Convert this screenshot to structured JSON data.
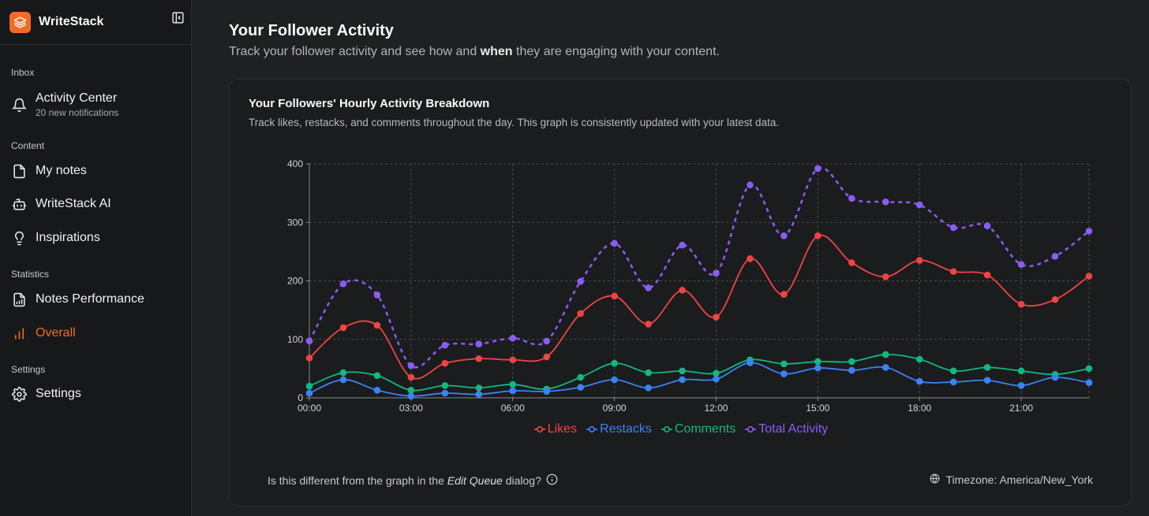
{
  "app": {
    "name": "WriteStack"
  },
  "sidebar": {
    "sections": {
      "inbox": "Inbox",
      "content": "Content",
      "statistics": "Statistics",
      "settings": "Settings"
    },
    "items": {
      "activity_center": {
        "label": "Activity Center",
        "sub": "20 new notifications"
      },
      "my_notes": {
        "label": "My notes"
      },
      "ai": {
        "label": "WriteStack AI"
      },
      "inspirations": {
        "label": "Inspirations"
      },
      "notes_performance": {
        "label": "Notes Performance"
      },
      "overall": {
        "label": "Overall"
      },
      "settings": {
        "label": "Settings"
      }
    }
  },
  "page": {
    "title": "Your Follower Activity",
    "subtitle_pre": "Track your follower activity and see how and ",
    "subtitle_bold": "when",
    "subtitle_post": " they are engaging with your content."
  },
  "card": {
    "title": "Your Followers' Hourly Activity Breakdown",
    "subtitle": "Track likes, restacks, and comments throughout the day. This graph is consistently updated with your latest data.",
    "footer_pre": "Is this different from the graph in the ",
    "footer_em": "Edit Queue",
    "footer_post": " dialog?",
    "timezone": "Timezone: America/New_York"
  },
  "colors": {
    "accent": "#f26b25",
    "likes": "#ef4444",
    "restacks": "#3b82f6",
    "comments": "#10b981",
    "total": "#8b5cf6"
  },
  "chart_data": {
    "type": "line",
    "x": [
      "00:00",
      "01:00",
      "02:00",
      "03:00",
      "04:00",
      "05:00",
      "06:00",
      "07:00",
      "08:00",
      "09:00",
      "10:00",
      "11:00",
      "12:00",
      "13:00",
      "14:00",
      "15:00",
      "16:00",
      "17:00",
      "18:00",
      "19:00",
      "20:00",
      "21:00",
      "22:00",
      "23:00"
    ],
    "xticks": [
      "00:00",
      "03:00",
      "06:00",
      "09:00",
      "12:00",
      "15:00",
      "18:00",
      "21:00"
    ],
    "yticks": [
      0,
      100,
      200,
      300,
      400
    ],
    "ylim": [
      0,
      400
    ],
    "grid": true,
    "legend_position": "bottom-center",
    "series": [
      {
        "name": "Likes",
        "color": "#ef4444",
        "dashed": false,
        "values": [
          68,
          120,
          124,
          35,
          59,
          67,
          65,
          70,
          144,
          174,
          126,
          184,
          138,
          238,
          177,
          277,
          231,
          207,
          235,
          216,
          210,
          160,
          168,
          208
        ]
      },
      {
        "name": "Restacks",
        "color": "#3b82f6",
        "dashed": false,
        "values": [
          8,
          31,
          13,
          3,
          8,
          6,
          12,
          11,
          18,
          31,
          17,
          31,
          32,
          60,
          41,
          51,
          47,
          52,
          28,
          27,
          30,
          21,
          35,
          26
        ]
      },
      {
        "name": "Comments",
        "color": "#10b981",
        "dashed": false,
        "values": [
          20,
          43,
          38,
          13,
          21,
          17,
          23,
          15,
          35,
          59,
          43,
          46,
          42,
          65,
          58,
          62,
          62,
          74,
          66,
          46,
          52,
          46,
          40,
          50
        ]
      },
      {
        "name": "Total Activity",
        "color": "#8b5cf6",
        "dashed": true,
        "values": [
          97,
          195,
          176,
          55,
          90,
          92,
          102,
          97,
          199,
          264,
          188,
          261,
          213,
          364,
          277,
          392,
          341,
          335,
          330,
          291,
          294,
          228,
          242,
          285
        ]
      }
    ]
  }
}
